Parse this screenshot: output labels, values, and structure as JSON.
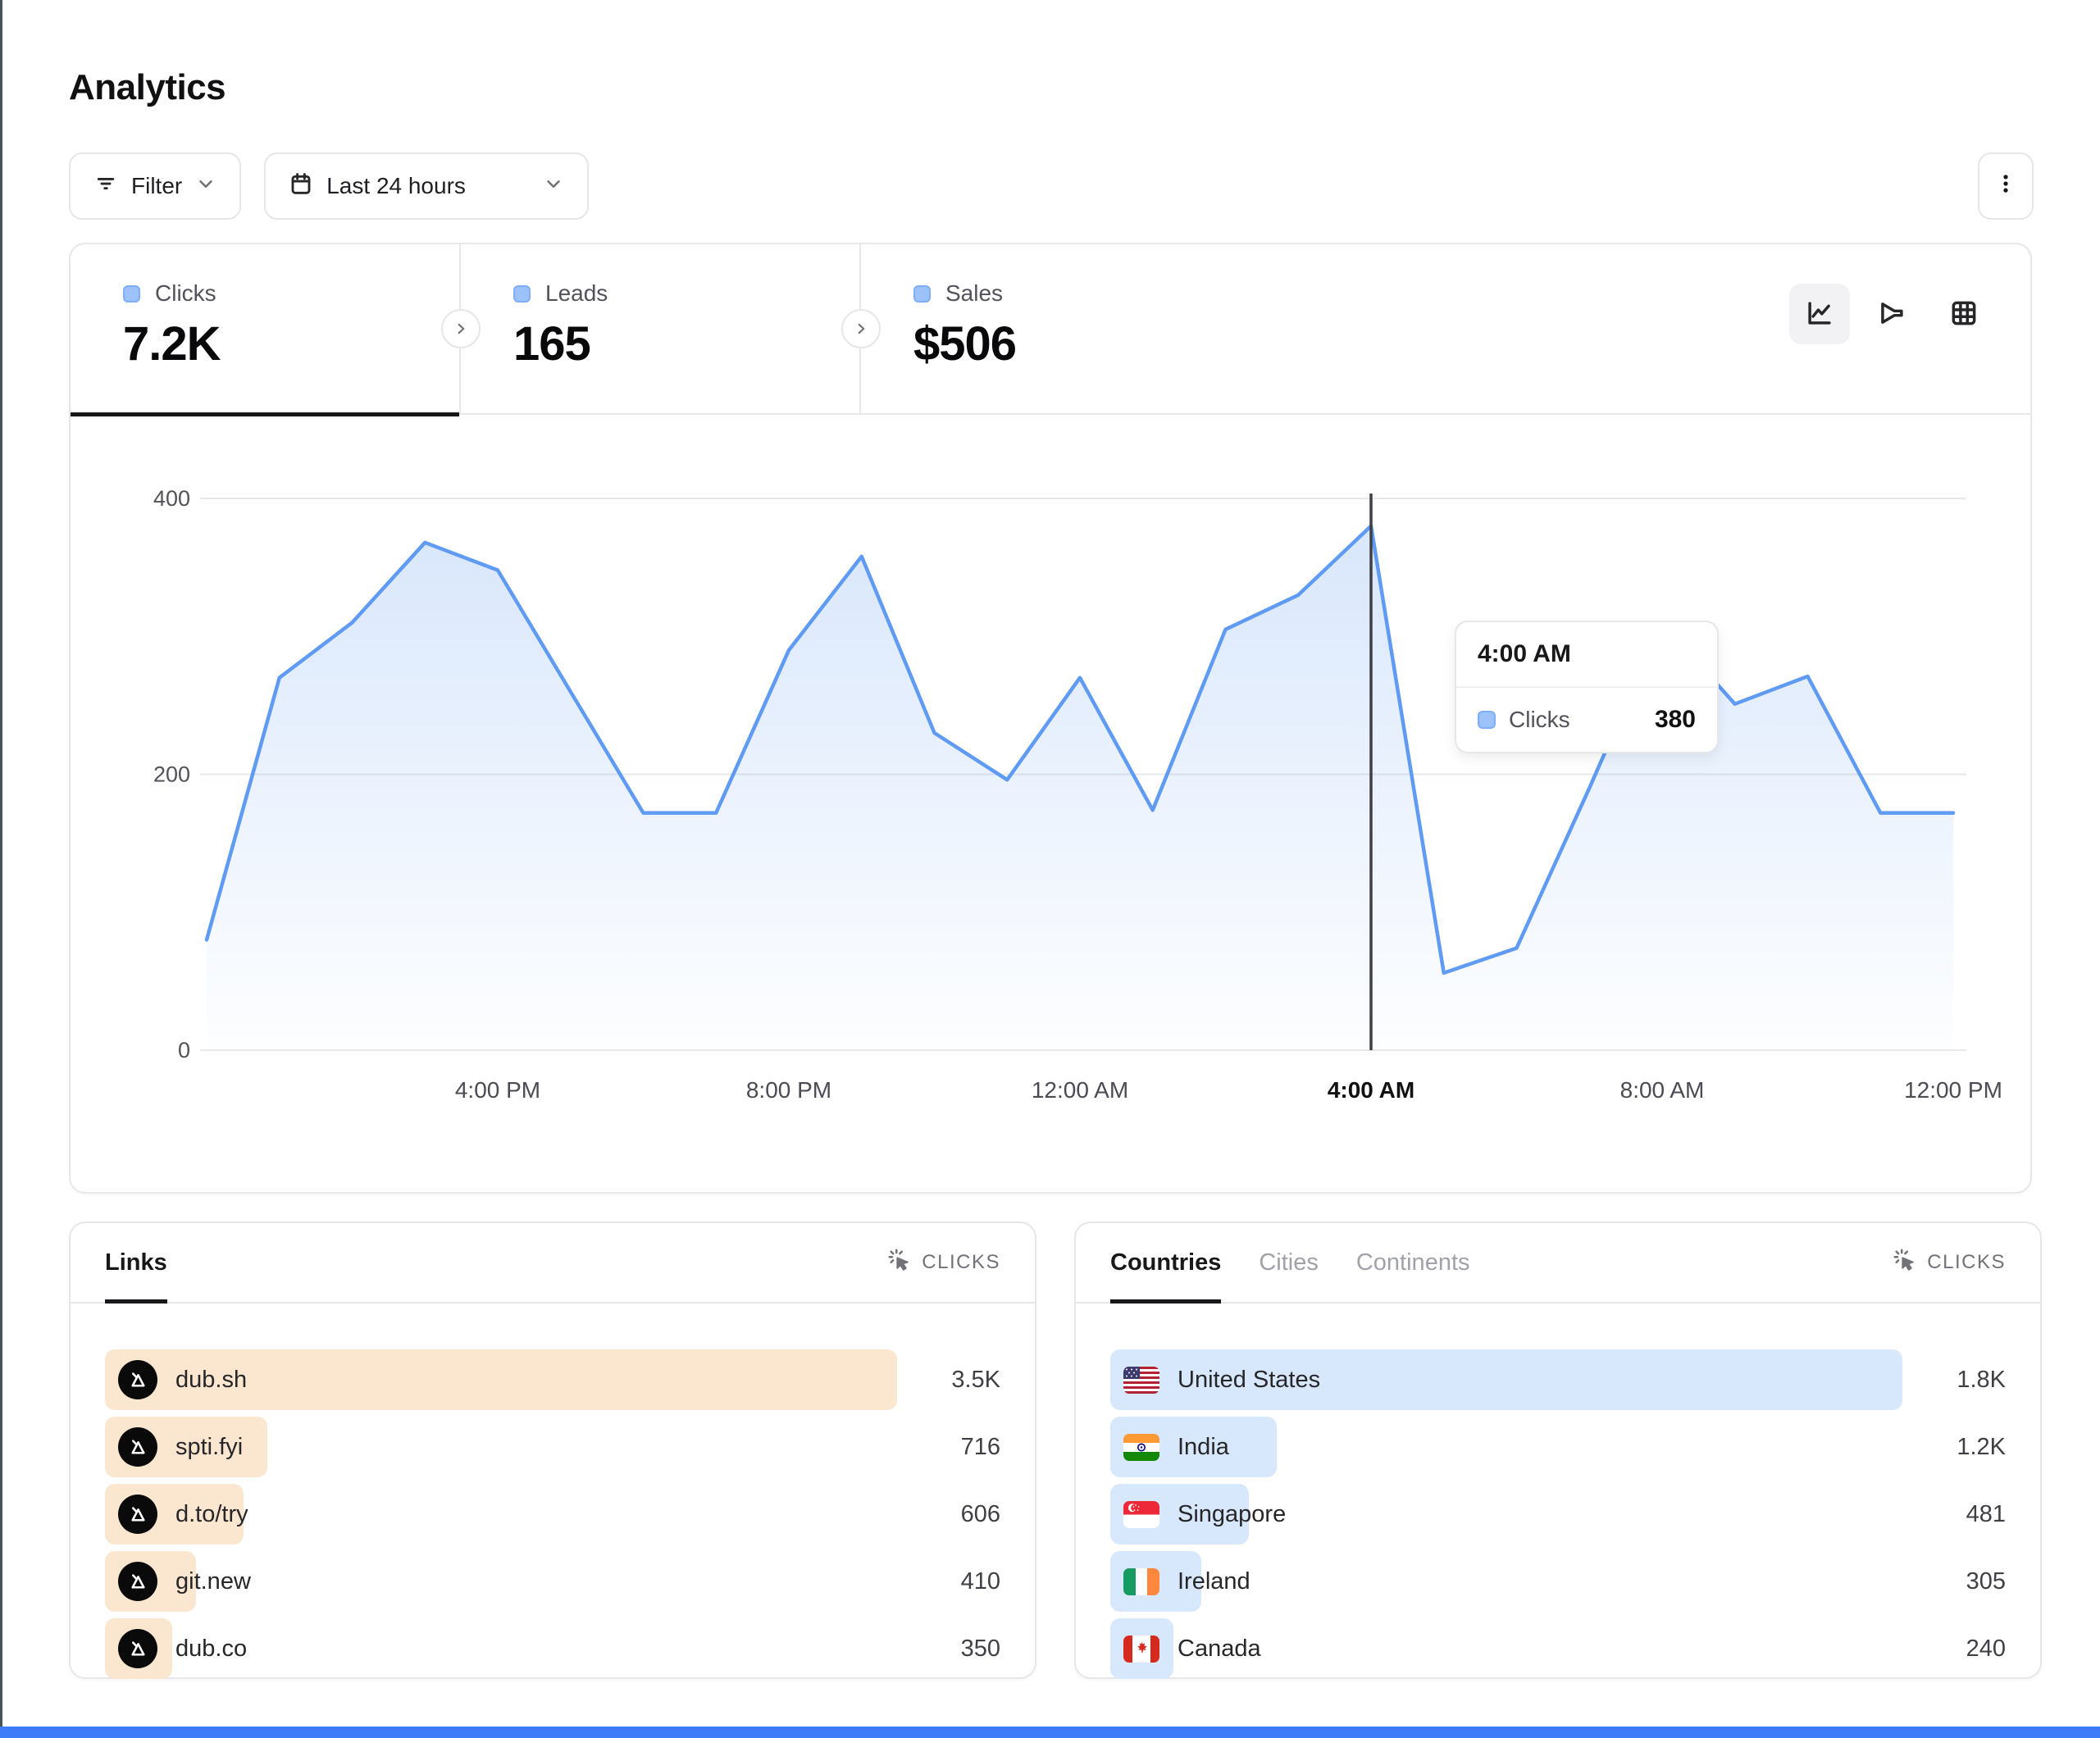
{
  "page": {
    "title": "Analytics"
  },
  "colors": {
    "line": "#5f9bf3",
    "area_fill": "#5f9bf3",
    "links_bar": "#fbe7cf",
    "countries_bar": "#d8e8fc",
    "dot_fill": "#9cc2f9",
    "crosshair": "#3f3f46",
    "accent_bottom_bar": "#3e7cfa"
  },
  "toolbar": {
    "filter_label": "Filter",
    "date_range_label": "Last 24 hours"
  },
  "stats": {
    "tabs": [
      {
        "label": "Clicks",
        "value": "7.2K",
        "active": true
      },
      {
        "label": "Leads",
        "value": "165",
        "active": false
      },
      {
        "label": "Sales",
        "value": "$506",
        "active": false
      }
    ]
  },
  "chart_data": {
    "type": "area",
    "title": "Clicks over last 24 hours",
    "x": [
      "12:00 PM",
      "1:00 PM",
      "2:00 PM",
      "3:00 PM",
      "4:00 PM",
      "5:00 PM",
      "6:00 PM",
      "7:00 PM",
      "8:00 PM",
      "9:00 PM",
      "10:00 PM",
      "11:00 PM",
      "12:00 AM",
      "1:00 AM",
      "2:00 AM",
      "3:00 AM",
      "4:00 AM",
      "5:00 AM",
      "6:00 AM",
      "7:00 AM",
      "8:00 AM",
      "9:00 AM",
      "10:00 AM",
      "11:00 AM",
      "12:00 PM"
    ],
    "series": [
      {
        "name": "Clicks",
        "values": [
          80,
          270,
          310,
          368,
          348,
          260,
          172,
          172,
          290,
          358,
          230,
          196,
          270,
          174,
          305,
          330,
          380,
          56,
          74,
          190,
          310,
          251,
          271,
          172,
          172
        ]
      }
    ],
    "x_tick_labels": [
      "4:00 PM",
      "8:00 PM",
      "12:00 AM",
      "4:00 AM",
      "8:00 AM",
      "12:00 PM"
    ],
    "highlighted_tick": "4:00 AM",
    "hover_index": 16,
    "y_ticks": [
      0,
      200,
      400
    ],
    "ylim": [
      0,
      400
    ],
    "grid": true,
    "legend_position": "none"
  },
  "tooltip": {
    "time": "4:00 AM",
    "series": "Clicks",
    "value": "380"
  },
  "links_panel": {
    "tab": "Links",
    "metric_label": "CLICKS",
    "rows": [
      {
        "label": "dub.sh",
        "value": "3.5K",
        "bar_pct": 100
      },
      {
        "label": "spti.fyi",
        "value": "716",
        "bar_pct": 20.5
      },
      {
        "label": "d.to/try",
        "value": "606",
        "bar_pct": 17.5
      },
      {
        "label": "git.new",
        "value": "410",
        "bar_pct": 11.5
      },
      {
        "label": "dub.co",
        "value": "350",
        "bar_pct": 8.5
      }
    ]
  },
  "countries_panel": {
    "tabs": [
      "Countries",
      "Cities",
      "Continents"
    ],
    "active_tab": "Countries",
    "metric_label": "CLICKS",
    "rows": [
      {
        "label": "United States",
        "value": "1.8K",
        "bar_pct": 100,
        "flag": "us"
      },
      {
        "label": "India",
        "value": "1.2K",
        "bar_pct": 21,
        "flag": "in"
      },
      {
        "label": "Singapore",
        "value": "481",
        "bar_pct": 17.5,
        "flag": "sg"
      },
      {
        "label": "Ireland",
        "value": "305",
        "bar_pct": 11.5,
        "flag": "ie"
      },
      {
        "label": "Canada",
        "value": "240",
        "bar_pct": 8,
        "flag": "ca"
      }
    ]
  }
}
